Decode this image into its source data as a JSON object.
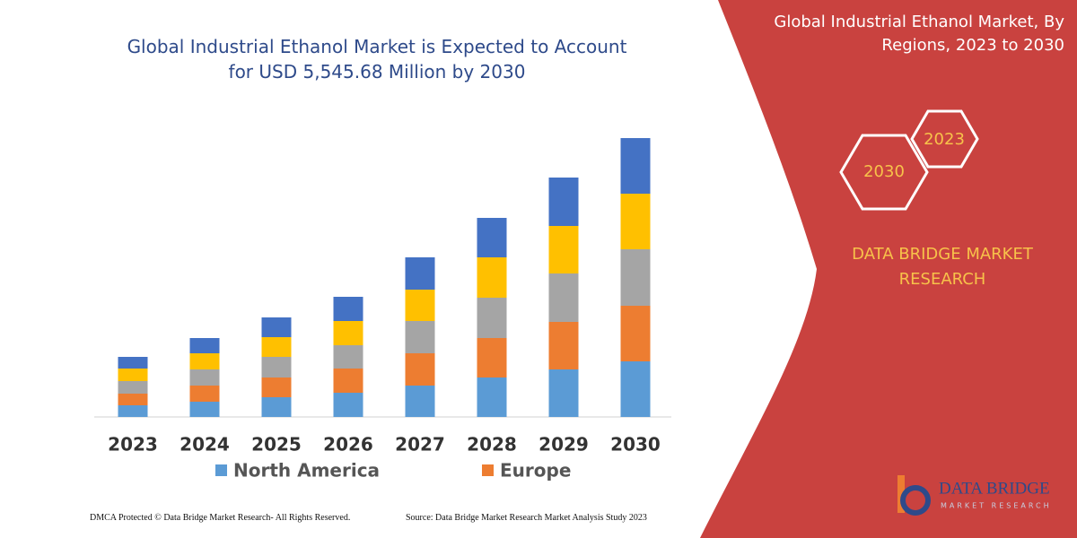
{
  "chart_data": {
    "type": "bar",
    "stacked": true,
    "title": "Global Industrial Ethanol Market is Expected to Account for USD 5,545.68 Million by 2030",
    "categories": [
      "2023",
      "2024",
      "2025",
      "2026",
      "2027",
      "2028",
      "2029",
      "2030"
    ],
    "series": [
      {
        "name": "North America",
        "color": "#5b9bd5",
        "values": [
          13,
          17,
          22,
          27,
          35,
          44,
          53,
          62
        ]
      },
      {
        "name": "Europe",
        "color": "#ed7d31",
        "values": [
          13,
          18,
          22,
          27,
          36,
          44,
          53,
          62
        ]
      },
      {
        "color": "#a5a5a5",
        "values": [
          14,
          18,
          23,
          26,
          36,
          45,
          54,
          63
        ]
      },
      {
        "color": "#ffc000",
        "values": [
          14,
          18,
          22,
          27,
          35,
          45,
          53,
          62
        ]
      },
      {
        "color": "#4472c4",
        "values": [
          13,
          17,
          22,
          27,
          36,
          44,
          54,
          62
        ]
      }
    ],
    "ylim": [
      0,
      320
    ]
  },
  "panel": {
    "title": "Global Industrial Ethanol Market, By Regions, 2023 to 2030",
    "hexagons": [
      "2030",
      "2023"
    ],
    "brand": "DATA BRIDGE MARKET RESEARCH"
  },
  "footer": {
    "copyright": "DMCA Protected © Data Bridge Market Research- All Rights Reserved.",
    "source": "Source: Data Bridge Market Research  Market Analysis Study 2023"
  },
  "logo": {
    "name": "DATA BRIDGE",
    "tagline": "MARKET RESEARCH"
  }
}
